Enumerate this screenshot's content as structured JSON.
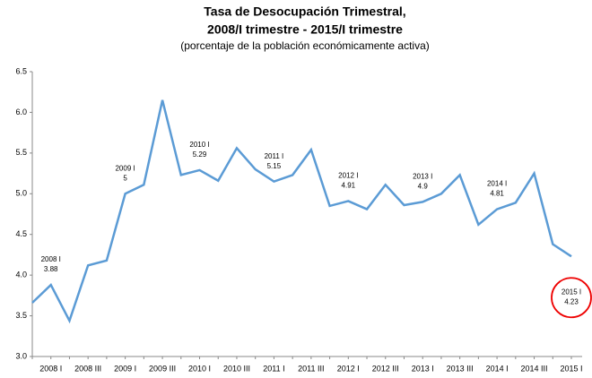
{
  "chart_data": {
    "type": "line",
    "title": [
      "Tasa de Desocupación Trimestral,",
      "2008/I trimestre - 2015/I trimestre"
    ],
    "subtitle": "(porcentaje de la población económicamente activa)",
    "categories": [
      null,
      "2008 I",
      null,
      "2008 III",
      null,
      "2009 I",
      null,
      "2009 III",
      null,
      "2010 I",
      null,
      "2010 III",
      null,
      "2011 I",
      null,
      "2011 III",
      null,
      "2012 I",
      null,
      "2012 III",
      null,
      "2013 I",
      null,
      "2013 III",
      null,
      "2014 I",
      null,
      "2014 III",
      null,
      "2015 I"
    ],
    "series": [
      {
        "name": "Tasa de desocupación",
        "color": "#5b9bd5",
        "values": [
          3.66,
          3.88,
          3.44,
          4.12,
          4.18,
          5.0,
          5.11,
          6.15,
          5.23,
          5.29,
          5.16,
          5.56,
          5.3,
          5.15,
          5.23,
          5.54,
          4.85,
          4.91,
          4.81,
          5.11,
          4.86,
          4.9,
          5.0,
          5.23,
          4.62,
          4.81,
          4.89,
          5.25,
          4.38,
          4.23
        ]
      }
    ],
    "ylim": [
      3,
      6.5
    ],
    "yticks": [
      {
        "value": 3,
        "label": "3.0"
      },
      3.5,
      {
        "value": 4,
        "label": "4.0"
      },
      4.5,
      {
        "value": 5,
        "label": "5.0"
      },
      5.5,
      {
        "value": 6,
        "label": "6.0"
      },
      6.5
    ],
    "grid": false
  }
}
